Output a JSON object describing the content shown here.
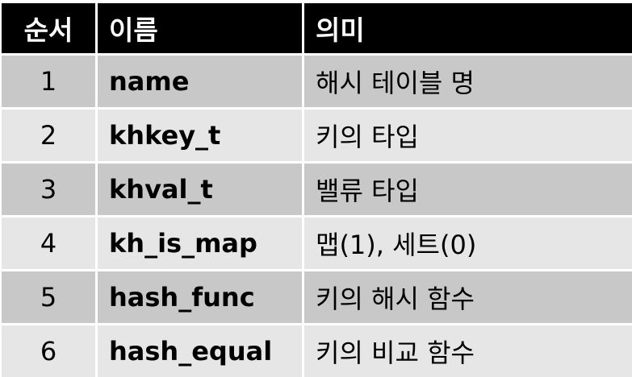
{
  "header": {
    "order": "순서",
    "name": "이름",
    "meaning": "의미"
  },
  "rows": [
    {
      "order": "1",
      "name": "name",
      "meaning": "해시 테이블 명"
    },
    {
      "order": "2",
      "name": "khkey_t",
      "meaning": "키의 타입"
    },
    {
      "order": "3",
      "name": "khval_t",
      "meaning": "밸류 타입"
    },
    {
      "order": "4",
      "name": "kh_is_map",
      "meaning": "맵(1), 세트(0)"
    },
    {
      "order": "5",
      "name": "hash_func",
      "meaning": "키의 해시 함수"
    },
    {
      "order": "6",
      "name": "hash_equal",
      "meaning": "키의 비교 함수"
    }
  ],
  "colors": {
    "header_bg": "#000000",
    "header_text": "#ffffff",
    "row_dark": "#c8c8c8",
    "row_light": "#e6e6e6"
  }
}
